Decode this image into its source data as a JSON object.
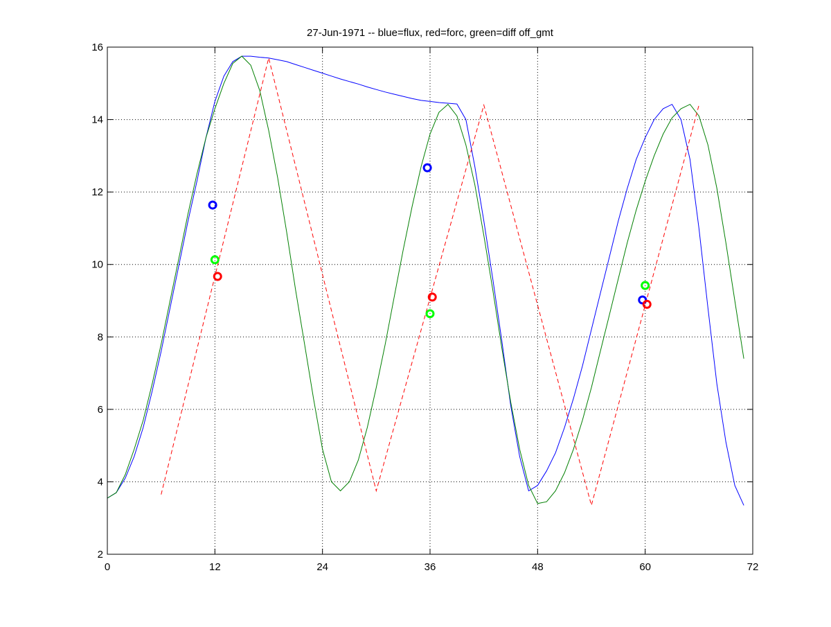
{
  "chart_data": {
    "type": "line",
    "title": "27-Jun-1971 -- blue=flux, red=forc, green=diff off_gmt",
    "xlabel": "",
    "ylabel": "",
    "xlim": [
      0,
      72
    ],
    "ylim": [
      2,
      16
    ],
    "xticks": [
      "0",
      "12",
      "24",
      "36",
      "48",
      "60",
      "72"
    ],
    "yticks": [
      "2",
      "4",
      "6",
      "8",
      "10",
      "12",
      "14",
      "16"
    ],
    "grid": true,
    "series": [
      {
        "name": "flux",
        "color": "#0000ff",
        "style": "solid",
        "x": [
          0,
          1,
          2,
          3,
          4,
          5,
          6,
          7,
          8,
          9,
          10,
          11,
          12,
          13,
          14,
          15,
          16,
          17,
          18,
          19,
          20,
          21,
          22,
          23,
          24,
          25,
          26,
          27,
          28,
          29,
          30,
          31,
          32,
          33,
          34,
          35,
          36,
          37,
          38,
          39,
          40,
          41,
          42,
          43,
          44,
          45,
          46,
          47,
          48,
          49,
          50,
          51,
          52,
          53,
          54,
          55,
          56,
          57,
          58,
          59,
          60,
          61,
          62,
          63,
          64,
          65,
          66,
          67,
          68,
          69,
          70,
          71
        ],
        "y": [
          3.55,
          3.7,
          4.1,
          4.7,
          5.5,
          6.5,
          7.6,
          8.8,
          10.0,
          11.2,
          12.3,
          13.5,
          14.5,
          15.2,
          15.6,
          15.75,
          15.75,
          15.72,
          15.7,
          15.65,
          15.6,
          15.52,
          15.44,
          15.36,
          15.28,
          15.2,
          15.12,
          15.05,
          14.98,
          14.9,
          14.83,
          14.76,
          14.7,
          14.64,
          14.58,
          14.53,
          14.5,
          14.47,
          14.45,
          14.43,
          14.0,
          12.7,
          11.2,
          9.6,
          7.9,
          6.1,
          4.7,
          3.75,
          3.9,
          4.3,
          4.8,
          5.5,
          6.3,
          7.2,
          8.2,
          9.2,
          10.2,
          11.2,
          12.1,
          12.9,
          13.5,
          14.0,
          14.3,
          14.42,
          14.0,
          12.9,
          11.0,
          8.8,
          6.7,
          5.1,
          3.9,
          3.35
        ]
      },
      {
        "name": "diff",
        "color": "#007f00",
        "style": "solid",
        "x": [
          0,
          1,
          2,
          3,
          4,
          5,
          6,
          7,
          8,
          9,
          10,
          11,
          12,
          13,
          14,
          15,
          16,
          17,
          18,
          19,
          20,
          21,
          22,
          23,
          24,
          25,
          26,
          27,
          28,
          29,
          30,
          31,
          32,
          33,
          34,
          35,
          36,
          37,
          38,
          39,
          40,
          41,
          42,
          43,
          44,
          45,
          46,
          47,
          48,
          49,
          50,
          51,
          52,
          53,
          54,
          55,
          56,
          57,
          58,
          59,
          60,
          61,
          62,
          63,
          64,
          65,
          66,
          67,
          68,
          69,
          70,
          71
        ],
        "y": [
          3.55,
          3.7,
          4.2,
          4.9,
          5.7,
          6.7,
          7.8,
          9.0,
          10.2,
          11.4,
          12.5,
          13.5,
          14.3,
          15.0,
          15.55,
          15.75,
          15.5,
          14.8,
          13.7,
          12.4,
          10.9,
          9.3,
          7.8,
          6.3,
          4.9,
          4.0,
          3.75,
          4.0,
          4.6,
          5.5,
          6.6,
          7.8,
          9.1,
          10.4,
          11.6,
          12.7,
          13.6,
          14.2,
          14.42,
          14.1,
          13.3,
          12.2,
          10.8,
          9.3,
          7.7,
          6.2,
          4.9,
          3.9,
          3.4,
          3.45,
          3.75,
          4.25,
          4.9,
          5.7,
          6.6,
          7.6,
          8.6,
          9.6,
          10.6,
          11.5,
          12.3,
          13.0,
          13.6,
          14.05,
          14.3,
          14.42,
          14.1,
          13.3,
          12.1,
          10.6,
          9.0,
          7.4
        ]
      },
      {
        "name": "forc",
        "color": "#ff0000",
        "style": "dashed",
        "x": [
          6,
          18,
          30,
          42,
          54,
          66
        ],
        "y": [
          3.65,
          15.7,
          3.75,
          14.4,
          3.35,
          14.4
        ]
      }
    ],
    "markers": [
      {
        "name": "flux",
        "color": "#0000ff",
        "x": [
          11.75,
          35.7,
          59.7
        ],
        "y": [
          11.64,
          12.67,
          9.02
        ]
      },
      {
        "name": "diff",
        "color": "#00ff00",
        "x": [
          12.0,
          36.0,
          60.0
        ],
        "y": [
          10.13,
          8.64,
          9.42
        ]
      },
      {
        "name": "forc",
        "color": "#ff0000",
        "x": [
          12.3,
          36.25,
          60.2
        ],
        "y": [
          9.67,
          9.1,
          8.9
        ]
      }
    ]
  }
}
